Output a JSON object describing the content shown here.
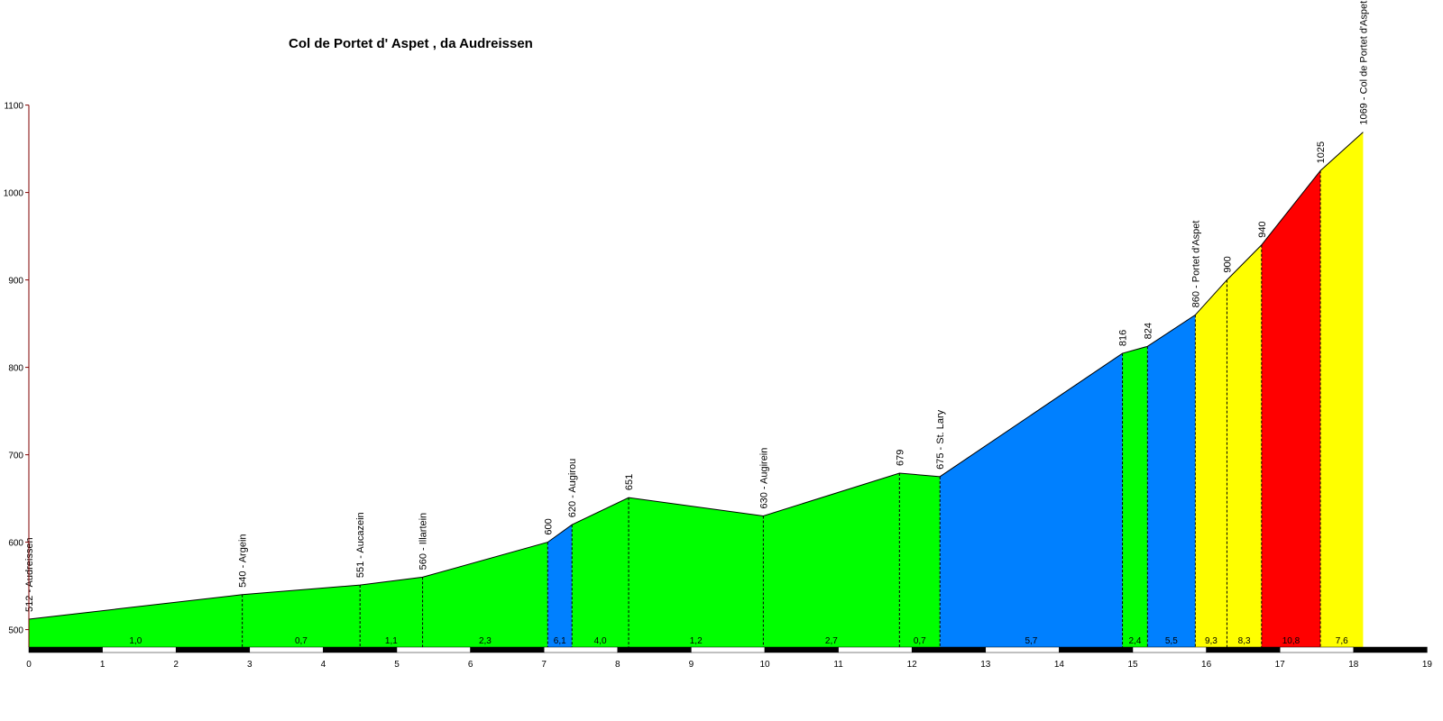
{
  "chart_data": {
    "type": "area",
    "title": "Col de Portet d' Aspet , da Audreissen",
    "xlabel": "",
    "ylabel": "",
    "xlim": [
      0,
      19
    ],
    "ylim": [
      480,
      1100
    ],
    "y_ticks": [
      500,
      600,
      700,
      800,
      900,
      1000,
      1100
    ],
    "y_tick_labels": [
      "500",
      "600",
      "700",
      "800",
      "900",
      "1000",
      "1100"
    ],
    "x_ticks": [
      0,
      1,
      2,
      3,
      4,
      5,
      6,
      7,
      8,
      9,
      10,
      11,
      12,
      13,
      14,
      15,
      16,
      17,
      18,
      19
    ],
    "x_tick_labels": [
      "0",
      "1",
      "2",
      "3",
      "4",
      "5",
      "6",
      "7",
      "8",
      "9",
      "10",
      "11",
      "12",
      "13",
      "14",
      "15",
      "16",
      "17",
      "18",
      "19"
    ],
    "profile": [
      {
        "x": 0,
        "y": 512
      },
      {
        "x": 2.9,
        "y": 540
      },
      {
        "x": 4.5,
        "y": 551
      },
      {
        "x": 5.35,
        "y": 560
      },
      {
        "x": 7.05,
        "y": 600
      },
      {
        "x": 7.38,
        "y": 620
      },
      {
        "x": 8.15,
        "y": 651
      },
      {
        "x": 9.98,
        "y": 630
      },
      {
        "x": 11.83,
        "y": 679
      },
      {
        "x": 12.38,
        "y": 675
      },
      {
        "x": 14.86,
        "y": 816
      },
      {
        "x": 15.2,
        "y": 824
      },
      {
        "x": 15.85,
        "y": 860
      },
      {
        "x": 16.28,
        "y": 900
      },
      {
        "x": 16.75,
        "y": 940
      },
      {
        "x": 17.55,
        "y": 1025
      },
      {
        "x": 18.13,
        "y": 1069
      }
    ],
    "segments": [
      {
        "from": 0,
        "to": 2.9,
        "gradient": "1,0",
        "color": "#00ff00"
      },
      {
        "from": 2.9,
        "to": 4.5,
        "gradient": "0,7",
        "color": "#00ff00"
      },
      {
        "from": 4.5,
        "to": 5.35,
        "gradient": "1,1",
        "color": "#00ff00"
      },
      {
        "from": 5.35,
        "to": 7.05,
        "gradient": "2,3",
        "color": "#00ff00"
      },
      {
        "from": 7.05,
        "to": 7.38,
        "gradient": "6,1",
        "color": "#0080ff"
      },
      {
        "from": 7.38,
        "to": 8.15,
        "gradient": "4,0",
        "color": "#00ff00"
      },
      {
        "from": 8.15,
        "to": 9.98,
        "gradient": "1,2",
        "color": "#00ff00"
      },
      {
        "from": 9.98,
        "to": 11.83,
        "gradient": "2,7",
        "color": "#00ff00"
      },
      {
        "from": 11.83,
        "to": 12.38,
        "gradient": "0,7",
        "color": "#00ff00"
      },
      {
        "from": 12.38,
        "to": 14.86,
        "gradient": "5,7",
        "color": "#0080ff"
      },
      {
        "from": 14.86,
        "to": 15.2,
        "gradient": "2,4",
        "color": "#00ff00"
      },
      {
        "from": 15.2,
        "to": 15.85,
        "gradient": "5,5",
        "color": "#0080ff"
      },
      {
        "from": 15.85,
        "to": 16.28,
        "gradient": "9,3",
        "color": "#ffff00"
      },
      {
        "from": 16.28,
        "to": 16.75,
        "gradient": "8,3",
        "color": "#ffff00"
      },
      {
        "from": 16.75,
        "to": 17.55,
        "gradient": "10,8",
        "color": "#ff0000"
      },
      {
        "from": 17.55,
        "to": 18.13,
        "gradient": "7,6",
        "color": "#ffff00"
      }
    ],
    "waypoints": [
      {
        "x": 0,
        "y": 512,
        "label": "512 - Audreissen",
        "line": false
      },
      {
        "x": 2.9,
        "y": 540,
        "label": "540 - Argein",
        "line": true
      },
      {
        "x": 4.5,
        "y": 551,
        "label": "551 - Aucazein",
        "line": true
      },
      {
        "x": 5.35,
        "y": 560,
        "label": "560 - Illartein",
        "line": true
      },
      {
        "x": 7.05,
        "y": 600,
        "label": "600",
        "line": true
      },
      {
        "x": 7.38,
        "y": 620,
        "label": "620 - Augirou",
        "line": true
      },
      {
        "x": 8.15,
        "y": 651,
        "label": "651",
        "line": true
      },
      {
        "x": 9.98,
        "y": 630,
        "label": "630 - Augirein",
        "line": true
      },
      {
        "x": 11.83,
        "y": 679,
        "label": "679",
        "line": true
      },
      {
        "x": 12.38,
        "y": 675,
        "label": "675 - St. Lary",
        "line": true
      },
      {
        "x": 14.86,
        "y": 816,
        "label": "816",
        "line": true
      },
      {
        "x": 15.2,
        "y": 824,
        "label": "824",
        "line": true
      },
      {
        "x": 15.85,
        "y": 860,
        "label": "860 - Portet d'Aspet",
        "line": true
      },
      {
        "x": 16.28,
        "y": 900,
        "label": "900",
        "line": true
      },
      {
        "x": 16.75,
        "y": 940,
        "label": "940",
        "line": true
      },
      {
        "x": 17.55,
        "y": 1025,
        "label": "1025",
        "line": true
      },
      {
        "x": 18.13,
        "y": 1069,
        "label": "1069 - Col de Portet d'Aspet",
        "line": false
      }
    ],
    "colors": {
      "green": "#00ff00",
      "blue": "#0080ff",
      "yellow": "#ffff00",
      "red": "#ff0000",
      "y_axis": "#800000"
    },
    "grid": false,
    "legend": "none"
  }
}
